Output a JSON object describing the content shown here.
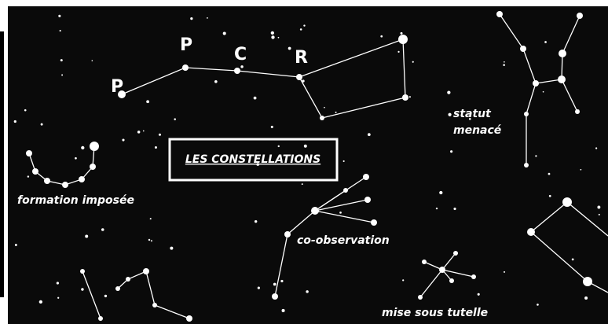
{
  "letters": [
    "P",
    "P",
    "C",
    "R"
  ],
  "title": "LES CONSTELLATIONS",
  "statut_menace": [
    "statut",
    "menacé"
  ],
  "formation_imposee": "formation imposée",
  "co_observation": "co-observation",
  "mise_sous_tutelle": "mise sous tutelle"
}
